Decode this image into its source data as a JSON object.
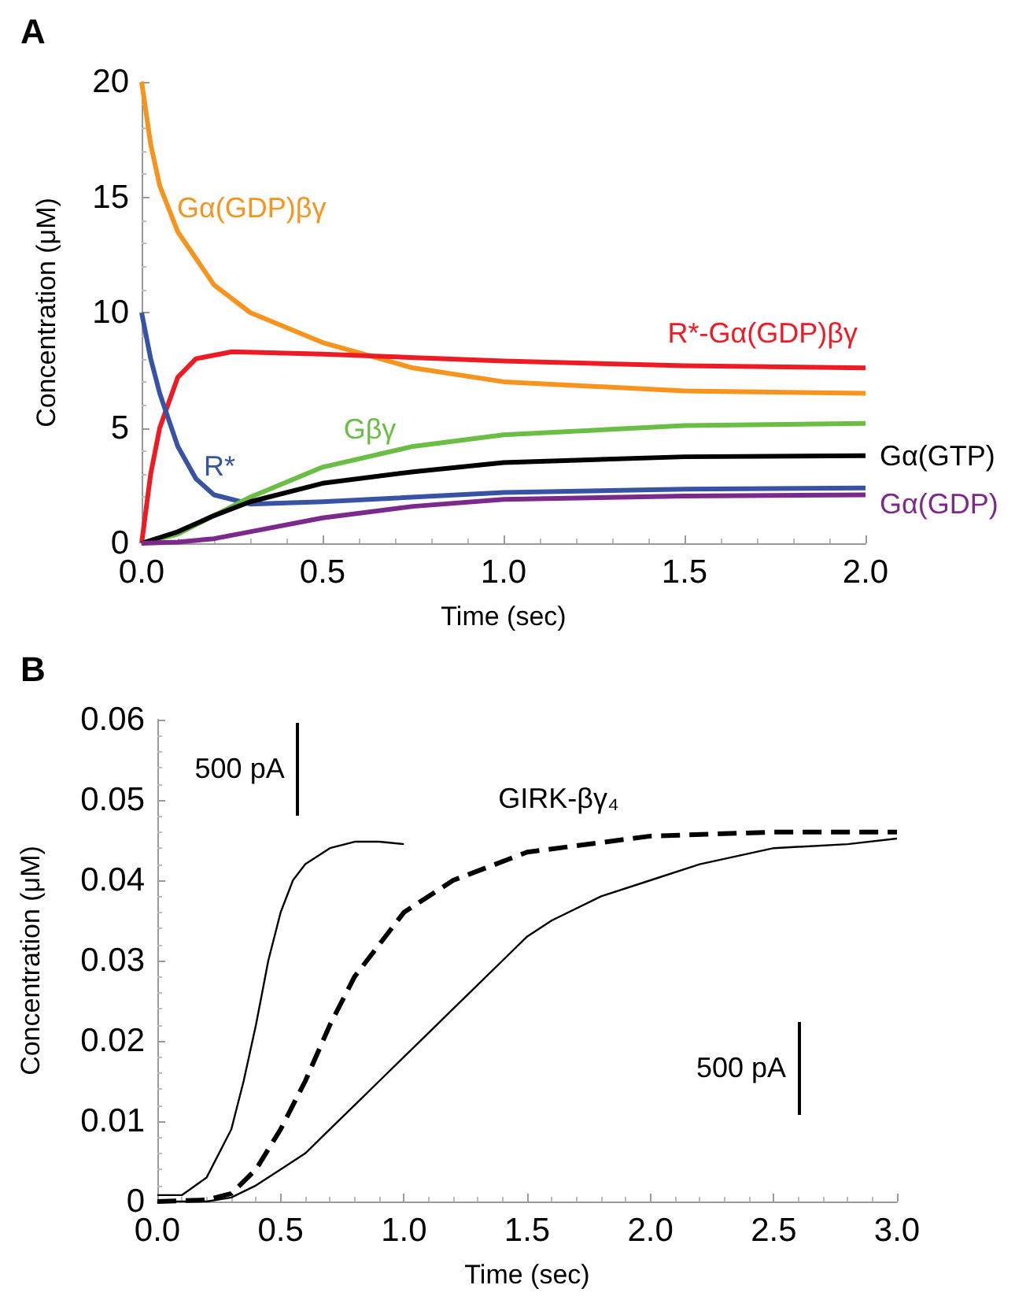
{
  "chart_data": [
    {
      "type": "line",
      "title": "A",
      "xlabel": "Time (sec)",
      "ylabel": "Concentration (μM)",
      "xlim": [
        0,
        2
      ],
      "ylim": [
        0,
        20
      ],
      "xticks": [
        {
          "value": 0,
          "label": "0.0"
        },
        {
          "value": 0.5,
          "label": "0.5"
        },
        {
          "value": 1,
          "label": "1.0"
        },
        {
          "value": 1.5,
          "label": "1.5"
        },
        {
          "value": 2,
          "label": "2.0"
        }
      ],
      "yticks": [
        0,
        5,
        10,
        15,
        20
      ],
      "grid": false,
      "legend": false,
      "marker": "none",
      "line_style": "solid",
      "series": [
        {
          "name": "Gα(GDP)βγ",
          "color": "#f7941d",
          "x": [
            0,
            0.025,
            0.05,
            0.1,
            0.2,
            0.3,
            0.5,
            0.75,
            1.0,
            1.5,
            2.0
          ],
          "values": [
            20,
            17.3,
            15.5,
            13.5,
            11.2,
            10.0,
            8.7,
            7.6,
            7.0,
            6.6,
            6.5
          ]
        },
        {
          "name": "R*-Gα(GDP)βγ",
          "color": "#ed1c24",
          "x": [
            0,
            0.025,
            0.05,
            0.1,
            0.15,
            0.25,
            0.5,
            1.0,
            1.5,
            2.0
          ],
          "values": [
            0,
            3.0,
            5.0,
            7.2,
            8.0,
            8.3,
            8.2,
            7.9,
            7.7,
            7.6
          ]
        },
        {
          "name": "R*",
          "color": "#3953a4",
          "x": [
            0,
            0.025,
            0.05,
            0.1,
            0.15,
            0.2,
            0.3,
            0.5,
            1.0,
            1.5,
            2.0
          ],
          "values": [
            10,
            8.0,
            6.5,
            4.2,
            2.8,
            2.1,
            1.7,
            1.8,
            2.2,
            2.35,
            2.4
          ]
        },
        {
          "name": "Gβγ",
          "color": "#6abd45",
          "x": [
            0,
            0.1,
            0.2,
            0.3,
            0.5,
            0.75,
            1.0,
            1.5,
            2.0
          ],
          "values": [
            0,
            0.4,
            1.2,
            2.0,
            3.3,
            4.2,
            4.7,
            5.1,
            5.2
          ]
        },
        {
          "name": "Gα(GTP)",
          "color": "#000000",
          "x": [
            0,
            0.1,
            0.2,
            0.3,
            0.5,
            0.75,
            1.0,
            1.5,
            2.0
          ],
          "values": [
            0,
            0.5,
            1.2,
            1.8,
            2.6,
            3.1,
            3.5,
            3.75,
            3.8
          ]
        },
        {
          "name": "Gα(GDP)",
          "color": "#7b2a8b",
          "x": [
            0,
            0.1,
            0.2,
            0.3,
            0.5,
            0.75,
            1.0,
            1.5,
            2.0
          ],
          "values": [
            0,
            0.05,
            0.2,
            0.5,
            1.1,
            1.6,
            1.9,
            2.05,
            2.1
          ]
        }
      ]
    },
    {
      "type": "line",
      "title": "B",
      "xlabel": "Time (sec)",
      "ylabel": "Concentration (μM)",
      "xlim": [
        0,
        3
      ],
      "ylim": [
        0,
        0.06
      ],
      "xticks": [
        {
          "value": 0,
          "label": "0.0"
        },
        {
          "value": 0.5,
          "label": "0.5"
        },
        {
          "value": 1,
          "label": "1.0"
        },
        {
          "value": 1.5,
          "label": "1.5"
        },
        {
          "value": 2,
          "label": "2.0"
        },
        {
          "value": 2.5,
          "label": "2.5"
        },
        {
          "value": 3,
          "label": "3.0"
        }
      ],
      "yticks": [
        0,
        0.01,
        0.02,
        0.03,
        0.04,
        0.05,
        0.06
      ],
      "grid": false,
      "legend": false,
      "marker": "none",
      "annotations": [
        "500 pA",
        "500 pA"
      ],
      "series": [
        {
          "color": "#000000",
          "line_style": "solid",
          "x": [
            0,
            0.1,
            0.2,
            0.3,
            0.35,
            0.4,
            0.45,
            0.5,
            0.55,
            0.6,
            0.7,
            0.8,
            0.9,
            1.0
          ],
          "values": [
            0.0008,
            0.0008,
            0.003,
            0.009,
            0.015,
            0.022,
            0.03,
            0.036,
            0.04,
            0.042,
            0.044,
            0.0448,
            0.0448,
            0.0445
          ]
        },
        {
          "name": "GIRK-βγ₄",
          "color": "#000000",
          "line_style": "dashed",
          "x": [
            0,
            0.2,
            0.3,
            0.4,
            0.5,
            0.6,
            0.7,
            0.8,
            0.9,
            1.0,
            1.2,
            1.5,
            2.0,
            2.5,
            3.0
          ],
          "values": [
            0,
            0.0002,
            0.001,
            0.004,
            0.009,
            0.015,
            0.022,
            0.028,
            0.032,
            0.036,
            0.04,
            0.0435,
            0.0455,
            0.046,
            0.046
          ]
        },
        {
          "color": "#000000",
          "line_style": "solid",
          "x": [
            0,
            0.2,
            0.3,
            0.4,
            0.5,
            0.6,
            0.7,
            0.8,
            0.9,
            1.0,
            1.1,
            1.2,
            1.3,
            1.4,
            1.5,
            1.6,
            1.8,
            2.0,
            2.2,
            2.5,
            2.8,
            3.0
          ],
          "values": [
            0,
            0,
            0.0005,
            0.002,
            0.004,
            0.006,
            0.009,
            0.012,
            0.015,
            0.018,
            0.021,
            0.024,
            0.027,
            0.03,
            0.033,
            0.035,
            0.038,
            0.04,
            0.042,
            0.044,
            0.0445,
            0.0452
          ]
        }
      ]
    }
  ]
}
